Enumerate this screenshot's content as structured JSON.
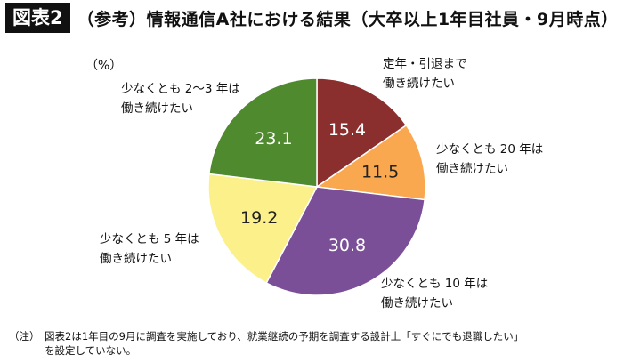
{
  "header": {
    "badge": "図表2",
    "title": "（参考）情報通信A社における結果（大卒以上1年目社員・9月時点）"
  },
  "unit_label": "（%）",
  "note": {
    "prefix": "（注）",
    "line1": "図表2は1年目の9月に調査を実施しており、就業継続の予期を調査する設計上「すぐにでも退職したい」",
    "line2": "を設定していない。"
  },
  "chart_data": {
    "type": "pie",
    "start_angle_deg": 0,
    "direction": "clockwise",
    "slices": [
      {
        "label_line1": "定年・引退まで",
        "label_line2": "働き続けたい",
        "value": 15.4,
        "display": "15.4",
        "color": "#8b2e2e"
      },
      {
        "label_line1": "少なくとも 20 年は",
        "label_line2": "働き続けたい",
        "value": 11.5,
        "display": "11.5",
        "color": "#f9a84f"
      },
      {
        "label_line1": "少なくとも 10 年は",
        "label_line2": "働き続けたい",
        "value": 30.8,
        "display": "30.8",
        "color": "#7b4f97"
      },
      {
        "label_line1": "少なくとも 5 年は",
        "label_line2": "働き続けたい",
        "value": 19.2,
        "display": "19.2",
        "color": "#fbf08a"
      },
      {
        "label_line1": "少なくとも 2〜3 年は",
        "label_line2": "働き続けたい",
        "value": 23.1,
        "display": "23.1",
        "color": "#4f8a2f"
      }
    ]
  }
}
